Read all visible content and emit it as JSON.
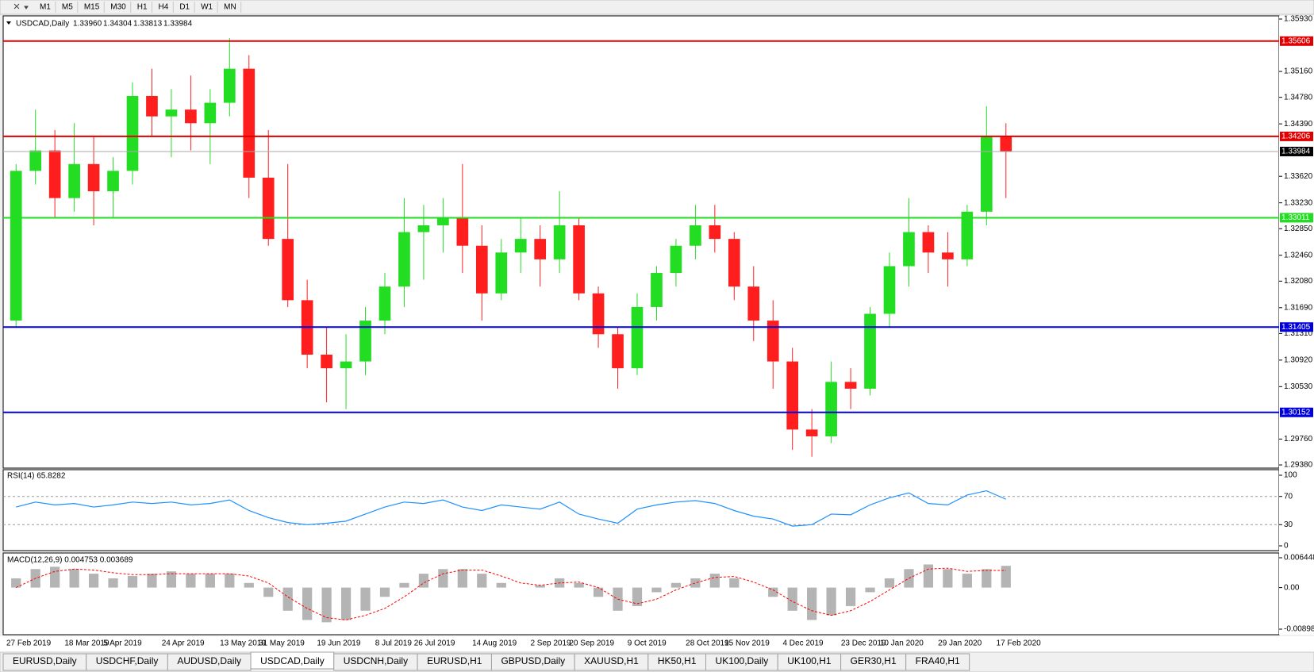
{
  "toolbar": {
    "timeframes": [
      "M1",
      "M5",
      "M15",
      "M30",
      "H1",
      "H4",
      "D1",
      "W1",
      "MN"
    ]
  },
  "chart_data": [
    {
      "type": "candlestick",
      "title": "USDCAD,Daily",
      "quote": [
        "1.33960",
        "1.34304",
        "1.33813",
        "1.33984"
      ],
      "categories": [
        "27 Feb 2019",
        null,
        null,
        "18 Mar 2019",
        null,
        "5 Apr 2019",
        null,
        null,
        "24 Apr 2019",
        null,
        null,
        "13 May 2019",
        null,
        "31 May 2019",
        null,
        null,
        "19 Jun 2019",
        null,
        null,
        "8 Jul 2019",
        null,
        "26 Jul 2019",
        null,
        null,
        "14 Aug 2019",
        null,
        null,
        "2 Sep 2019",
        null,
        "20 Sep 2019",
        null,
        null,
        "9 Oct 2019",
        null,
        null,
        "28 Oct 2019",
        null,
        "15 Nov 2019",
        null,
        null,
        "4 Dec 2019",
        null,
        null,
        "23 Dec 2019",
        null,
        "10 Jan 2020",
        null,
        null,
        "29 Jan 2020",
        null,
        null,
        "17 Feb 2020"
      ],
      "open": [
        1.315,
        1.337,
        1.34,
        1.333,
        1.338,
        1.334,
        1.337,
        1.348,
        1.345,
        1.346,
        1.344,
        1.347,
        1.352,
        1.336,
        1.327,
        1.318,
        1.31,
        1.308,
        1.309,
        1.315,
        1.32,
        1.328,
        1.329,
        1.33,
        1.326,
        1.319,
        1.325,
        1.327,
        1.324,
        1.329,
        1.319,
        1.313,
        1.308,
        1.317,
        1.322,
        1.326,
        1.329,
        1.327,
        1.32,
        1.315,
        1.309,
        1.299,
        1.298,
        1.306,
        1.305,
        1.316,
        1.323,
        1.328,
        1.325,
        1.324,
        1.331,
        1.342
      ],
      "high": [
        1.338,
        1.346,
        1.343,
        1.344,
        1.342,
        1.339,
        1.35,
        1.352,
        1.349,
        1.351,
        1.349,
        1.3565,
        1.354,
        1.343,
        1.338,
        1.321,
        1.314,
        1.313,
        1.317,
        1.322,
        1.333,
        1.332,
        1.333,
        1.338,
        1.329,
        1.327,
        1.33,
        1.329,
        1.334,
        1.33,
        1.32,
        1.314,
        1.319,
        1.323,
        1.327,
        1.332,
        1.332,
        1.328,
        1.323,
        1.318,
        1.311,
        1.302,
        1.309,
        1.308,
        1.317,
        1.325,
        1.333,
        1.329,
        1.328,
        1.332,
        1.3465,
        1.344
      ],
      "low": [
        1.314,
        1.335,
        1.33,
        1.331,
        1.329,
        1.33,
        1.335,
        1.342,
        1.339,
        1.34,
        1.338,
        1.345,
        1.333,
        1.326,
        1.317,
        1.308,
        1.303,
        1.302,
        1.307,
        1.313,
        1.317,
        1.321,
        1.325,
        1.322,
        1.315,
        1.318,
        1.322,
        1.32,
        1.322,
        1.318,
        1.311,
        1.305,
        1.307,
        1.315,
        1.32,
        1.324,
        1.325,
        1.318,
        1.312,
        1.305,
        1.296,
        1.295,
        1.297,
        1.302,
        1.304,
        1.314,
        1.32,
        1.322,
        1.32,
        1.323,
        1.329,
        1.333
      ],
      "close": [
        1.337,
        1.34,
        1.333,
        1.338,
        1.334,
        1.337,
        1.348,
        1.345,
        1.346,
        1.344,
        1.347,
        1.352,
        1.336,
        1.327,
        1.318,
        1.31,
        1.308,
        1.309,
        1.315,
        1.32,
        1.328,
        1.329,
        1.33,
        1.326,
        1.319,
        1.325,
        1.327,
        1.324,
        1.329,
        1.319,
        1.313,
        1.308,
        1.317,
        1.322,
        1.326,
        1.329,
        1.327,
        1.32,
        1.315,
        1.309,
        1.299,
        1.298,
        1.306,
        1.305,
        1.316,
        1.323,
        1.328,
        1.325,
        1.324,
        1.331,
        1.342,
        1.3398
      ],
      "up_color": "#22dd22",
      "down_color": "#ff1e1e",
      "ylim": [
        1.2938,
        1.3593
      ],
      "yticks": [
        {
          "value": 1.3593,
          "label": "1.35930"
        },
        {
          "value": 1.3516,
          "label": "1.35160"
        },
        {
          "value": 1.3478,
          "label": "1.34780"
        },
        {
          "value": 1.3439,
          "label": "1.34390"
        },
        {
          "value": 1.3362,
          "label": "1.33620"
        },
        {
          "value": 1.3323,
          "label": "1.33230"
        },
        {
          "value": 1.3285,
          "label": "1.32850"
        },
        {
          "value": 1.3246,
          "label": "1.32460"
        },
        {
          "value": 1.3208,
          "label": "1.32080"
        },
        {
          "value": 1.3169,
          "label": "1.31690"
        },
        {
          "value": 1.3131,
          "label": "1.31310"
        },
        {
          "value": 1.3092,
          "label": "1.30920"
        },
        {
          "value": 1.3053,
          "label": "1.30530"
        },
        {
          "value": 1.2976,
          "label": "1.29760"
        },
        {
          "value": 1.2938,
          "label": "1.29380"
        }
      ],
      "levels": [
        {
          "value": 1.35606,
          "color": "#e00000"
        },
        {
          "value": 1.34206,
          "color": "#e00000"
        },
        {
          "value": 1.33984,
          "color": "#000000"
        },
        {
          "value": 1.33011,
          "color": "#22dd22"
        },
        {
          "value": 1.31405,
          "color": "#0000dd"
        },
        {
          "value": 1.30152,
          "color": "#0000dd"
        }
      ]
    },
    {
      "type": "line",
      "title": "RSI(14) 65.8282",
      "color": "#1e90ff",
      "values": [
        55,
        62,
        58,
        60,
        55,
        58,
        62,
        60,
        62,
        58,
        60,
        65,
        50,
        40,
        33,
        30,
        32,
        35,
        45,
        55,
        62,
        60,
        65,
        55,
        50,
        58,
        55,
        52,
        62,
        45,
        38,
        32,
        52,
        58,
        62,
        64,
        60,
        50,
        42,
        38,
        28,
        30,
        45,
        44,
        58,
        68,
        75,
        60,
        58,
        72,
        78,
        66
      ],
      "ylim": [
        0,
        100
      ],
      "yticks": [
        100,
        70,
        30,
        0
      ],
      "levels": [
        70,
        30
      ]
    },
    {
      "type": "macd",
      "title": "MACD(12,26,9) 0.004753 0.003689",
      "series": [
        {
          "style": "bar",
          "color": "#b4b4b4",
          "values": [
            0.002,
            0.004,
            0.0045,
            0.004,
            0.003,
            0.002,
            0.0025,
            0.003,
            0.0035,
            0.003,
            0.003,
            0.003,
            0.001,
            -0.002,
            -0.005,
            -0.007,
            -0.0075,
            -0.007,
            -0.005,
            -0.002,
            0.001,
            0.003,
            0.004,
            0.004,
            0.003,
            0.001,
            0,
            0.0005,
            0.002,
            0.001,
            -0.002,
            -0.005,
            -0.004,
            -0.001,
            0.001,
            0.002,
            0.003,
            0.002,
            0,
            -0.002,
            -0.005,
            -0.007,
            -0.006,
            -0.004,
            -0.001,
            0.002,
            0.004,
            0.005,
            0.004,
            0.003,
            0.004,
            0.0047
          ]
        },
        {
          "style": "dashed",
          "color": "#ff0000",
          "values": [
            0,
            0.002,
            0.0035,
            0.004,
            0.0038,
            0.0032,
            0.0028,
            0.0028,
            0.003,
            0.003,
            0.003,
            0.003,
            0.0025,
            0.001,
            -0.002,
            -0.0045,
            -0.0065,
            -0.007,
            -0.006,
            -0.0045,
            -0.002,
            0.001,
            0.003,
            0.0038,
            0.0038,
            0.0025,
            0.001,
            0.0005,
            0.001,
            0.0012,
            0,
            -0.0025,
            -0.0035,
            -0.0025,
            -0.0005,
            0.001,
            0.0022,
            0.0024,
            0.0012,
            -0.0005,
            -0.003,
            -0.005,
            -0.006,
            -0.005,
            -0.003,
            -0.0005,
            0.002,
            0.004,
            0.0042,
            0.0035,
            0.0037,
            0.0037
          ]
        }
      ],
      "ylim": [
        -0.008982,
        0.006448
      ],
      "yticks": [
        0.006448,
        {
          "value": 0,
          "label": "0.00"
        },
        -0.008982
      ]
    }
  ],
  "tabs": [
    "EURUSD,Daily",
    "USDCHF,Daily",
    "AUDUSD,Daily",
    "USDCAD,Daily",
    "USDCNH,Daily",
    "EURUSD,H1",
    "GBPUSD,Daily",
    "XAUUSD,H1",
    "HK50,H1",
    "UK100,Daily",
    "UK100,H1",
    "GER30,H1",
    "FRA40,H1"
  ],
  "active_tab": 3
}
